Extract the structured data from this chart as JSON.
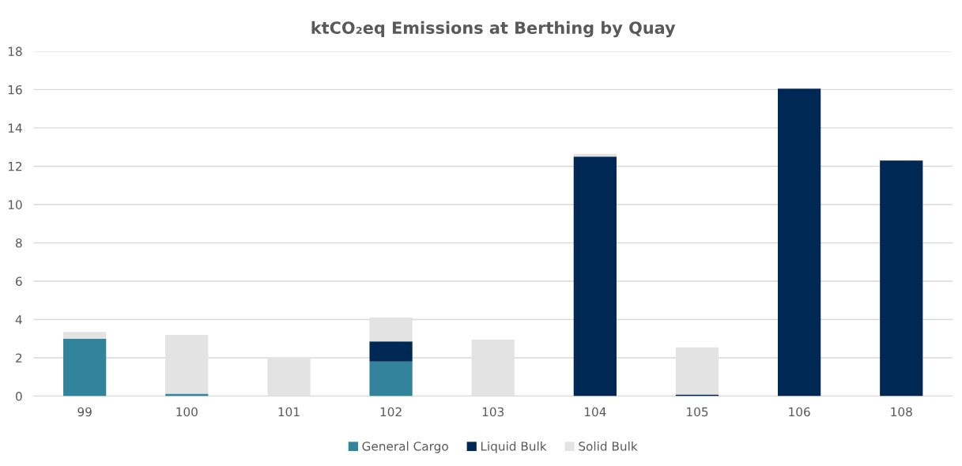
{
  "chart_data": {
    "type": "bar",
    "title": "ktCO₂eq Emissions at Berthing by Quay",
    "stacked": true,
    "categories": [
      "99",
      "100",
      "101",
      "102",
      "103",
      "104",
      "105",
      "106",
      "108"
    ],
    "series": [
      {
        "name": "General Cargo",
        "color": "#31849b",
        "values": [
          3.0,
          0.12,
          0,
          1.8,
          0,
          0,
          0,
          0,
          0
        ]
      },
      {
        "name": "Liquid Bulk",
        "color": "#002855",
        "values": [
          0,
          0,
          0,
          1.05,
          0,
          12.5,
          0.08,
          16.05,
          12.3
        ]
      },
      {
        "name": "Solid Bulk",
        "color": "#e3e3e3",
        "values": [
          0.35,
          3.08,
          2.0,
          1.25,
          2.95,
          0.15,
          2.47,
          0,
          0
        ]
      }
    ],
    "ylim": [
      0,
      18
    ],
    "yticks": [
      0,
      2,
      4,
      6,
      8,
      10,
      12,
      14,
      16,
      18
    ],
    "grid": "y",
    "legend": "bottom"
  }
}
